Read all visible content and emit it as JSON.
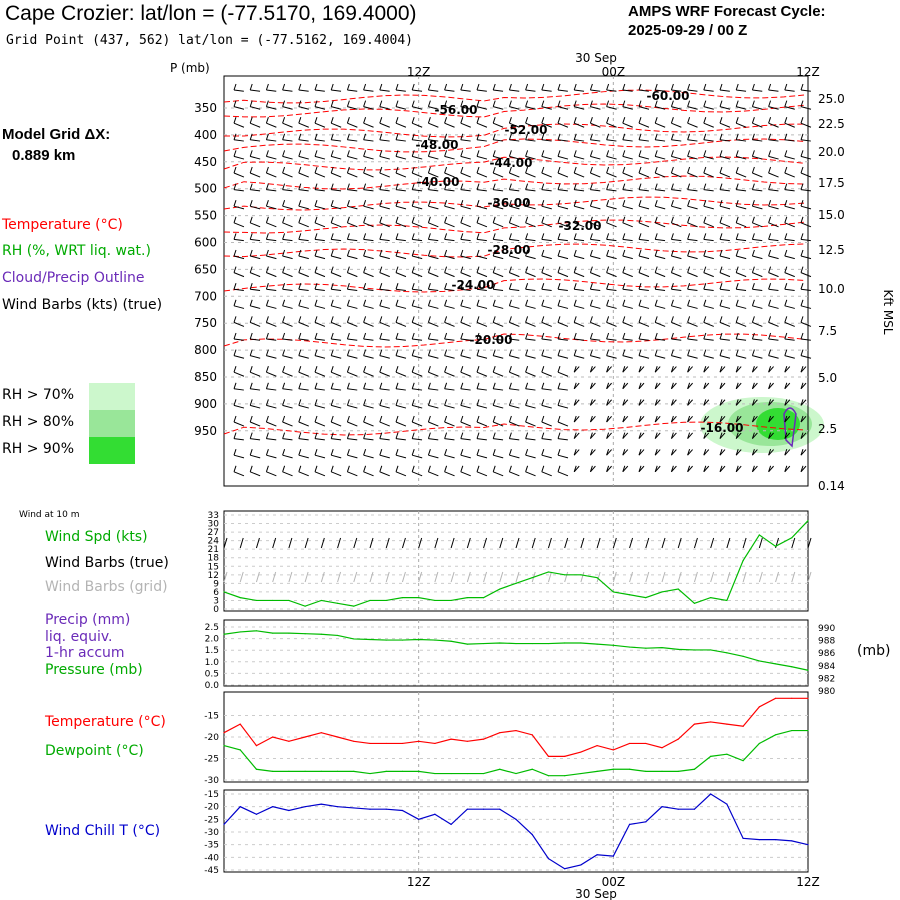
{
  "header": {
    "title": "Cape Crozier:  lat/lon = (-77.5170, 169.4000)",
    "subtitle": "Grid Point (437, 562) lat/lon = (-77.5162, 169.4004)",
    "cycle_label": "AMPS WRF Forecast Cycle:",
    "cycle_value": "2025-09-29 / 00  Z"
  },
  "model": {
    "label": "Model Grid ΔX:",
    "value": "0.889 km"
  },
  "legend": {
    "temperature": "Temperature (°C)",
    "rh": "RH (%, WRT liq. wat.)",
    "cloud": "Cloud/Precip Outline",
    "wind_barbs": "Wind Barbs (kts) (true)",
    "rh70": "RH > 70%",
    "rh80": "RH > 80%",
    "rh90": "RH > 90%",
    "wind10m": "Wind at 10 m",
    "wind_spd": "Wind Spd (kts)",
    "barbs_true": "Wind Barbs (true)",
    "barbs_grid": "Wind Barbs (grid)",
    "precip": "Precip (mm)",
    "precip2": "liq. equiv.",
    "precip3": "1-hr accum",
    "pressure": "Pressure (mb)",
    "pressure_unit": "(mb)",
    "temp2m": "Temperature (°C)",
    "dewpoint": "Dewpoint (°C)",
    "windchill": "Wind Chill T (°C)"
  },
  "colors": {
    "temperature": "#ff0000",
    "rh": "#00aa00",
    "cloud": "#6a2ab8",
    "wind_spd": "#00bb00",
    "barbs_grid": "#b4b4b4",
    "windchill": "#0000cc",
    "rh70": "#ccf7cc",
    "rh80": "#99e699",
    "rh90": "#33dd33"
  },
  "chart_data": [
    {
      "type": "line",
      "name": "upper-air",
      "y_left_label": "P (mb)",
      "y_right_label": "Kft MSL",
      "pressure_ticks": [
        "350",
        "400",
        "450",
        "500",
        "550",
        "600",
        "650",
        "700",
        "750",
        "800",
        "850",
        "900",
        "950"
      ],
      "height_ticks": [
        "25.0",
        "22.5",
        "20.0",
        "17.5",
        "15.0",
        "12.5",
        "10.0",
        "7.5",
        "5.0",
        "2.5",
        "0.14"
      ],
      "time_ticks_top": [
        "12Z",
        "00Z",
        "12Z"
      ],
      "date_top": "30 Sep",
      "isotherm_labels": [
        "-60.00",
        "-56.00",
        "-52.00",
        "-48.00",
        "-44.00",
        "-40.00",
        "-36.00",
        "-32.00",
        "-28.00",
        "-24.00",
        "-20.00",
        "-16.00"
      ]
    },
    {
      "type": "line",
      "name": "wind-speed",
      "y_ticks": [
        "33",
        "30",
        "27",
        "24",
        "21",
        "18",
        "15",
        "12",
        "9",
        "6",
        "3",
        "0"
      ],
      "ylim": [
        0,
        33
      ],
      "x_hours": [
        0,
        1,
        2,
        3,
        4,
        5,
        6,
        7,
        8,
        9,
        10,
        11,
        12,
        13,
        14,
        15,
        16,
        17,
        18,
        19,
        20,
        21,
        22,
        23,
        24,
        25,
        26,
        27,
        28,
        29,
        30,
        31,
        32,
        33,
        34,
        35,
        36
      ],
      "values": [
        6,
        4,
        3,
        3,
        3,
        1,
        3,
        2,
        1,
        3,
        3,
        4,
        4,
        3,
        3,
        4,
        4,
        7,
        9,
        11,
        13,
        12,
        12,
        11,
        6,
        5,
        4,
        6,
        7,
        2,
        4,
        3,
        17,
        26,
        22,
        25,
        31
      ]
    },
    {
      "type": "line",
      "name": "pressure",
      "y_left_ticks": [
        "2.5",
        "2.0",
        "1.5",
        "1.0",
        "0.5",
        "0.0"
      ],
      "y_right_ticks": [
        "990",
        "988",
        "986",
        "984",
        "982",
        "980"
      ],
      "ylim": [
        980,
        990
      ],
      "values": [
        988.4,
        988.8,
        989.0,
        988.6,
        988.6,
        988.5,
        988.4,
        988.2,
        987.6,
        987.5,
        987.4,
        987.4,
        987.5,
        987.4,
        987.2,
        986.7,
        986.8,
        986.9,
        986.8,
        986.8,
        986.8,
        986.9,
        986.9,
        986.7,
        986.5,
        986.2,
        986.0,
        986.1,
        985.8,
        985.7,
        985.7,
        985.2,
        984.6,
        983.8,
        983.3,
        982.8,
        982.2
      ]
    },
    {
      "type": "line",
      "name": "temperature-dewpoint",
      "y_ticks": [
        "-15",
        "-20",
        "-25",
        "-30"
      ],
      "ylim": [
        -30,
        -10
      ],
      "series": [
        {
          "name": "Temperature (°C)",
          "values": [
            -19,
            -17,
            -22,
            -20,
            -21,
            -20,
            -19,
            -20,
            -21,
            -21.5,
            -21.5,
            -21.5,
            -21,
            -21.5,
            -20.5,
            -21,
            -20.5,
            -19,
            -18.5,
            -19.5,
            -24.5,
            -24.5,
            -23.5,
            -22,
            -23,
            -21.5,
            -21.5,
            -22.5,
            -20.5,
            -17,
            -16.5,
            -17,
            -17.5,
            -13,
            -11,
            -11,
            -11
          ]
        },
        {
          "name": "Dewpoint (°C)",
          "values": [
            -22,
            -23,
            -27.5,
            -28,
            -28,
            -28,
            -28,
            -28,
            -28,
            -28.5,
            -28,
            -28,
            -28,
            -28.5,
            -28.5,
            -28.5,
            -28.5,
            -27.5,
            -28.5,
            -27.5,
            -29,
            -29,
            -28.5,
            -28,
            -27.5,
            -27.5,
            -28,
            -28,
            -28,
            -27.5,
            -24.5,
            -24,
            -25.5,
            -21.5,
            -19.5,
            -18.5,
            -18.5
          ]
        }
      ]
    },
    {
      "type": "line",
      "name": "wind-chill",
      "y_ticks": [
        "-15",
        "-20",
        "-25",
        "-30",
        "-35",
        "-40",
        "-45"
      ],
      "ylim": [
        -45,
        -15
      ],
      "series": [
        {
          "name": "Wind Chill T (°C)",
          "values": [
            -27,
            -20,
            -23,
            -20,
            -21.5,
            -20,
            -19,
            -20,
            -20.5,
            -21,
            -21,
            -21.5,
            -25,
            -23,
            -27,
            -21,
            -21,
            -21,
            -25,
            -31,
            -40.5,
            -44.5,
            -43,
            -39,
            -39.5,
            -27,
            -26,
            -20,
            -21,
            -21,
            -15,
            -19,
            -32.5,
            -33,
            -33,
            -33.5,
            -35
          ]
        }
      ],
      "time_ticks_bottom": [
        "12Z",
        "00Z",
        "12Z"
      ],
      "date_bottom": "30 Sep"
    }
  ]
}
